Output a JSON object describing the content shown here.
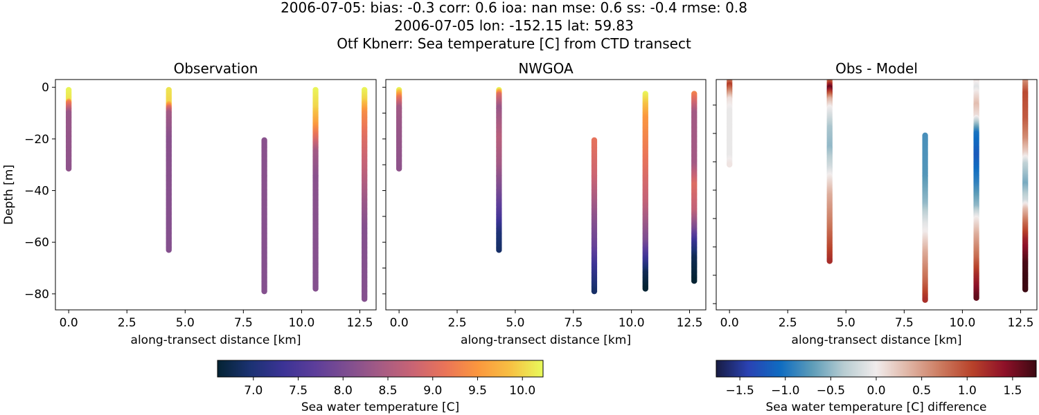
{
  "title_lines": [
    "2006-07-05: bias: -0.3  corr: 0.6  ioa: nan  mse: 0.6  ss: -0.4  rmse: 0.8",
    "2006-07-05 lon: -152.15 lat: 59.83",
    "Otf Kbnerr: Sea temperature [C] from CTD transect"
  ],
  "colormaps": {
    "thermal": [
      "#042333",
      "#1b3272",
      "#3b3395",
      "#5d3e9a",
      "#7f4e90",
      "#a55b84",
      "#c96474",
      "#ea7458",
      "#fb973e",
      "#f7c043",
      "#e8fa5b"
    ],
    "balance": [
      "#181c43",
      "#2a42b3",
      "#0f6cc1",
      "#5d9cb8",
      "#b8cdd2",
      "#f1ecec",
      "#e0b5a5",
      "#cc7b60",
      "#b8422a",
      "#8f1129",
      "#3c0912"
    ]
  },
  "chart_data": [
    {
      "type": "scatter",
      "title": "Observation",
      "xlabel": "along-transect distance [km]",
      "ylabel": "Depth [m]",
      "xlim": [
        -0.57,
        13.2
      ],
      "ylim": [
        -86.2,
        3.0
      ],
      "xticks": [
        "0.0",
        "2.5",
        "5.0",
        "7.5",
        "10.0",
        "12.5"
      ],
      "yticks": [
        "0",
        "−20",
        "−40",
        "−60",
        "−80"
      ],
      "ytick_values": [
        0,
        -20,
        -40,
        -60,
        -80
      ],
      "colormap": "thermal",
      "clim": [
        6.6,
        10.23
      ],
      "profiles": [
        {
          "x": 0.0,
          "points": [
            [
              -1,
              10.2
            ],
            [
              -5,
              10.1
            ],
            [
              -6,
              9.3
            ],
            [
              -10,
              8.3
            ],
            [
              -20,
              8.25
            ],
            [
              -31.5,
              8.2
            ]
          ]
        },
        {
          "x": 4.3,
          "points": [
            [
              -1,
              10.1
            ],
            [
              -6,
              10.0
            ],
            [
              -8,
              9.0
            ],
            [
              -10,
              8.4
            ],
            [
              -20,
              8.15
            ],
            [
              -63,
              8.1
            ]
          ]
        },
        {
          "x": 8.4,
          "points": [
            [
              -20.5,
              8.15
            ],
            [
              -79,
              8.1
            ]
          ]
        },
        {
          "x": 10.6,
          "points": [
            [
              -1,
              10.2
            ],
            [
              -8,
              10.0
            ],
            [
              -14,
              9.6
            ],
            [
              -20,
              9.0
            ],
            [
              -25,
              8.4
            ],
            [
              -35,
              8.15
            ],
            [
              -78,
              8.1
            ]
          ]
        },
        {
          "x": 12.7,
          "points": [
            [
              -1,
              10.2
            ],
            [
              -5,
              10.0
            ],
            [
              -10,
              9.4
            ],
            [
              -20,
              9.0
            ],
            [
              -35,
              8.6
            ],
            [
              -45,
              8.3
            ],
            [
              -55,
              8.1
            ],
            [
              -82,
              8.1
            ]
          ]
        }
      ]
    },
    {
      "type": "scatter",
      "title": "NWGOA",
      "xlabel": "along-transect distance [km]",
      "xlim": [
        -0.57,
        13.2
      ],
      "ylim": [
        -86.2,
        3.0
      ],
      "xticks": [
        "0.0",
        "2.5",
        "5.0",
        "7.5",
        "10.0",
        "12.5"
      ],
      "ytick_values": [
        0,
        -10,
        -20,
        -30,
        -40,
        -50,
        -60,
        -70,
        -80
      ],
      "colormap": "thermal",
      "clim": [
        6.6,
        10.23
      ],
      "profiles": [
        {
          "x": 0.0,
          "points": [
            [
              -1,
              10.2
            ],
            [
              -4,
              9.2
            ],
            [
              -8,
              8.4
            ],
            [
              -15,
              8.3
            ],
            [
              -31.5,
              8.2
            ]
          ]
        },
        {
          "x": 4.3,
          "points": [
            [
              -1,
              10.2
            ],
            [
              -3,
              9.0
            ],
            [
              -8,
              8.3
            ],
            [
              -20,
              8.6
            ],
            [
              -30,
              8.4
            ],
            [
              -40,
              8.0
            ],
            [
              -50,
              7.5
            ],
            [
              -57,
              7.0
            ],
            [
              -63,
              6.9
            ]
          ]
        },
        {
          "x": 8.4,
          "points": [
            [
              -20.5,
              9.1
            ],
            [
              -35,
              8.8
            ],
            [
              -50,
              8.2
            ],
            [
              -62,
              7.8
            ],
            [
              -70,
              7.3
            ],
            [
              -79,
              6.9
            ]
          ]
        },
        {
          "x": 10.6,
          "points": [
            [
              -2.5,
              10.2
            ],
            [
              -12,
              9.5
            ],
            [
              -25,
              9.2
            ],
            [
              -45,
              8.7
            ],
            [
              -60,
              8.0
            ],
            [
              -66,
              7.4
            ],
            [
              -72,
              6.8
            ],
            [
              -78,
              6.6
            ]
          ]
        },
        {
          "x": 12.7,
          "points": [
            [
              -2.5,
              9.3
            ],
            [
              -10,
              8.4
            ],
            [
              -30,
              8.4
            ],
            [
              -38,
              9.0
            ],
            [
              -48,
              8.7
            ],
            [
              -55,
              8.0
            ],
            [
              -60,
              7.3
            ],
            [
              -66,
              6.8
            ],
            [
              -75,
              6.6
            ]
          ]
        }
      ]
    },
    {
      "type": "scatter",
      "title": "Obs - Model",
      "xlabel": "along-transect distance [km]",
      "xlim": [
        -0.57,
        13.2
      ],
      "ylim": [
        -82.2,
        -1.0
      ],
      "xticks": [
        "0.0",
        "2.5",
        "5.0",
        "7.5",
        "10.0",
        "12.5"
      ],
      "ytick_values": [
        -10,
        -20,
        -30,
        -40,
        -50,
        -60,
        -70,
        -80
      ],
      "colormap": "balance",
      "clim": [
        -1.76,
        1.76
      ],
      "profiles": [
        {
          "x": 0.0,
          "points": [
            [
              -1,
              0.5
            ],
            [
              -3,
              1.1
            ],
            [
              -6,
              0.5
            ],
            [
              -8,
              0.1
            ],
            [
              -12,
              -0.05
            ],
            [
              -28,
              -0.05
            ],
            [
              -31,
              0.05
            ]
          ]
        },
        {
          "x": 4.3,
          "points": [
            [
              -1,
              0.6
            ],
            [
              -4,
              1.6
            ],
            [
              -6,
              1.0
            ],
            [
              -8,
              0.4
            ],
            [
              -11,
              0.0
            ],
            [
              -18,
              -0.4
            ],
            [
              -25,
              -0.5
            ],
            [
              -32,
              -0.2
            ],
            [
              -35,
              0.0
            ],
            [
              -42,
              0.4
            ],
            [
              -52,
              0.7
            ],
            [
              -60,
              1.0
            ],
            [
              -65,
              1.2
            ]
          ]
        },
        {
          "x": 8.4,
          "points": [
            [
              -20.7,
              -0.8
            ],
            [
              -35,
              -0.75
            ],
            [
              -45,
              -0.5
            ],
            [
              -52,
              -0.1
            ],
            [
              -55,
              0.0
            ],
            [
              -62,
              0.4
            ],
            [
              -72,
              0.8
            ],
            [
              -79,
              1.2
            ]
          ]
        },
        {
          "x": 10.6,
          "points": [
            [
              -1,
              0.1
            ],
            [
              -4,
              -0.1
            ],
            [
              -6,
              0.05
            ],
            [
              -10,
              0.3
            ],
            [
              -14,
              0.1
            ],
            [
              -16,
              -0.3
            ],
            [
              -20,
              -1.0
            ],
            [
              -28,
              -1.2
            ],
            [
              -38,
              -0.9
            ],
            [
              -46,
              -0.5
            ],
            [
              -50,
              0.0
            ],
            [
              -56,
              0.4
            ],
            [
              -64,
              0.8
            ],
            [
              -70,
              1.2
            ],
            [
              -78,
              1.6
            ]
          ]
        },
        {
          "x": 12.7,
          "points": [
            [
              -1,
              0.5
            ],
            [
              -6,
              1.0
            ],
            [
              -15,
              0.9
            ],
            [
              -22,
              0.6
            ],
            [
              -27,
              0.2
            ],
            [
              -31,
              -0.3
            ],
            [
              -38,
              -0.6
            ],
            [
              -44,
              -0.2
            ],
            [
              -47,
              0.3
            ],
            [
              -52,
              0.8
            ],
            [
              -58,
              1.3
            ],
            [
              -66,
              1.7
            ],
            [
              -75,
              1.8
            ]
          ]
        }
      ]
    }
  ],
  "colorbars": [
    {
      "label": "Sea water temperature [C]",
      "colormap": "thermal",
      "range": [
        6.6,
        10.23
      ],
      "ticks": [
        "7.0",
        "7.5",
        "8.0",
        "8.5",
        "9.0",
        "9.5",
        "10.0"
      ],
      "tick_values": [
        7.0,
        7.5,
        8.0,
        8.5,
        9.0,
        9.5,
        10.0
      ]
    },
    {
      "label": "Sea water temperature [C] difference",
      "colormap": "balance",
      "range": [
        -1.76,
        1.76
      ],
      "ticks": [
        "−1.5",
        "−1.0",
        "−0.5",
        "0.0",
        "0.5",
        "1.0",
        "1.5"
      ],
      "tick_values": [
        -1.5,
        -1.0,
        -0.5,
        0.0,
        0.5,
        1.0,
        1.5
      ]
    }
  ]
}
